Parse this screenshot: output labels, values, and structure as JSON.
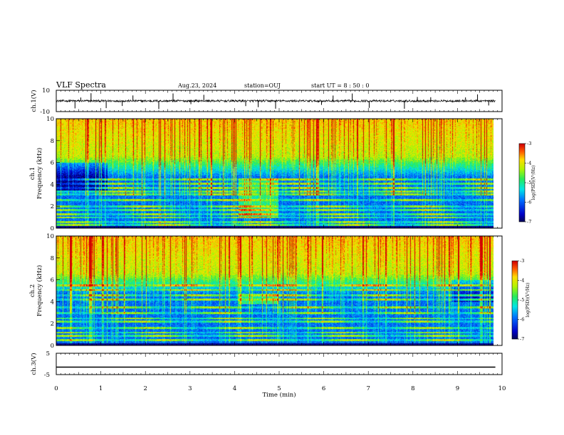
{
  "header": {
    "title": "VLF Spectra",
    "date": "Aug.23, 2024",
    "station": "station=OUJ",
    "start": "start UT =  8 : 50 : 0"
  },
  "chart_data": [
    {
      "id": "ch1-waveform",
      "type": "line",
      "ylabel": "ch.1(V)",
      "ylim": [
        -10,
        10
      ],
      "y_ticks": [
        "10",
        "-10"
      ],
      "xlim": [
        0,
        10
      ],
      "baseline_y": 0,
      "noise_amplitude": 1,
      "spike_times": [
        0.42,
        0.55,
        0.78,
        1.12,
        1.48,
        1.72,
        2.3,
        2.62,
        3.02,
        3.31,
        4.25,
        4.53,
        4.92,
        5.95,
        6.21,
        6.64,
        7.02,
        7.81,
        8.1,
        8.4,
        9.18,
        9.45,
        9.7
      ]
    },
    {
      "id": "ch1-spectrogram",
      "type": "heatmap",
      "xlabel": "",
      "ylabel_lines": [
        "ch.1",
        "Frequency (kHz)"
      ],
      "xlim": [
        0,
        9.85
      ],
      "ylim": [
        0,
        10
      ],
      "y_ticks": [
        "0",
        "2",
        "4",
        "6",
        "8",
        "10"
      ],
      "bands_khz": [
        0.3,
        0.6,
        1.0,
        1.3,
        1.7,
        2.0,
        2.6,
        3.1,
        3.4,
        3.7,
        4.1,
        4.5
      ],
      "intense_region": {
        "t_start": 4.1,
        "t_end": 5.0,
        "f_low": 1.0,
        "f_high": 4.6
      },
      "quiet_region": {
        "t_start": 0,
        "t_end": 1.15,
        "f_low": 3.5,
        "f_high": 6.0
      },
      "colorbar": {
        "range": [
          -7,
          -3
        ],
        "ticks": [
          "-3",
          "-4",
          "-5",
          "-6",
          "-7"
        ],
        "label": "log(PSD)(V²/Hz)"
      }
    },
    {
      "id": "ch2-spectrogram",
      "type": "heatmap",
      "ylabel_lines": [
        "ch.2",
        "Frequency (kHz)"
      ],
      "xlim": [
        0,
        9.85
      ],
      "ylim": [
        0,
        10
      ],
      "y_ticks": [
        "0",
        "2",
        "4",
        "6",
        "8",
        "10"
      ],
      "bands_khz": [
        0.5,
        0.9,
        1.2,
        1.6,
        2.2,
        2.5,
        3.0,
        3.5,
        4.2,
        4.6,
        5.1,
        5.5
      ],
      "intense_region": {
        "t_start": 4.1,
        "t_end": 5.0,
        "f_low": 3.8,
        "f_high": 4.8
      },
      "colorbar": {
        "range": [
          -7,
          -3
        ],
        "ticks": [
          "-3",
          "-4",
          "-5",
          "-6",
          "-7"
        ],
        "label": "log(PSD)(V²/Hz)"
      }
    },
    {
      "id": "ch3-waveform",
      "type": "line",
      "ylabel": "ch.3(V)",
      "ylim": [
        -5,
        5
      ],
      "y_ticks": [
        "5",
        "-5"
      ],
      "xlim": [
        0,
        10
      ],
      "baseline_y": -1.5,
      "xlabel": "Time (min)",
      "x_ticks": [
        "0",
        "1",
        "2",
        "3",
        "4",
        "5",
        "6",
        "7",
        "8",
        "9",
        "10"
      ]
    }
  ]
}
